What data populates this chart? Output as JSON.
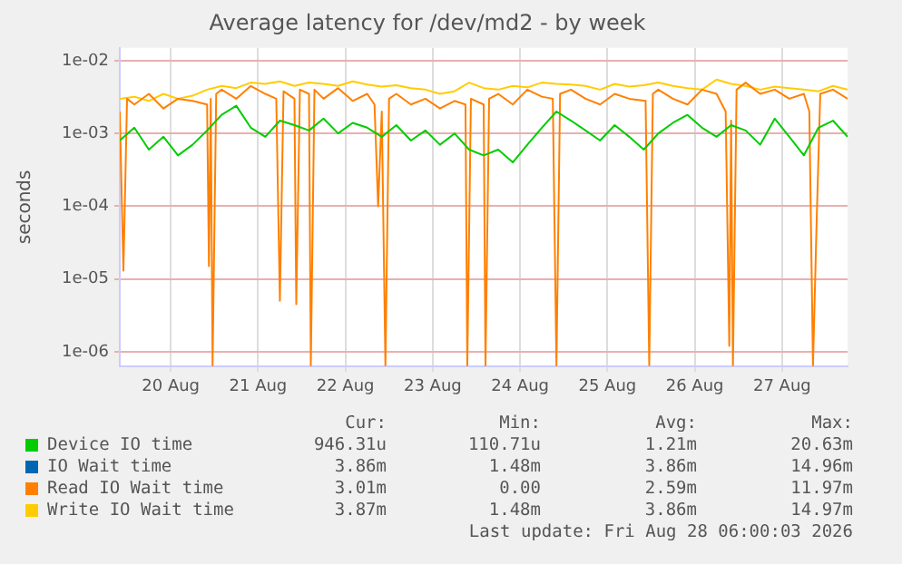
{
  "chart_data": {
    "type": "line",
    "title": "Average latency for /dev/md2 - by week",
    "ylabel": "seconds",
    "x": [
      "2026-08-19T22:00",
      "2026-08-20T02:00",
      "2026-08-20T06:00",
      "2026-08-20T10:00",
      "2026-08-20T14:00",
      "2026-08-20T18:00",
      "2026-08-20T22:00",
      "2026-08-21T02:00",
      "2026-08-21T06:00",
      "2026-08-21T10:00",
      "2026-08-21T14:00",
      "2026-08-21T18:00",
      "2026-08-21T22:00",
      "2026-08-22T02:00",
      "2026-08-22T06:00",
      "2026-08-22T10:00",
      "2026-08-22T14:00",
      "2026-08-22T18:00",
      "2026-08-22T22:00",
      "2026-08-23T02:00",
      "2026-08-23T06:00",
      "2026-08-23T10:00",
      "2026-08-23T14:00",
      "2026-08-23T18:00",
      "2026-08-23T22:00",
      "2026-08-24T02:00",
      "2026-08-24T06:00",
      "2026-08-24T10:00",
      "2026-08-24T14:00",
      "2026-08-24T18:00",
      "2026-08-24T22:00",
      "2026-08-25T02:00",
      "2026-08-25T06:00",
      "2026-08-25T10:00",
      "2026-08-25T14:00",
      "2026-08-25T18:00",
      "2026-08-25T22:00",
      "2026-08-26T02:00",
      "2026-08-26T06:00",
      "2026-08-26T10:00",
      "2026-08-26T14:00",
      "2026-08-26T18:00",
      "2026-08-26T22:00",
      "2026-08-27T02:00",
      "2026-08-27T06:00",
      "2026-08-27T10:00",
      "2026-08-27T14:00",
      "2026-08-27T18:00",
      "2026-08-27T22:00",
      "2026-08-28T02:00",
      "2026-08-28T06:00"
    ],
    "series": [
      {
        "name": "Device IO time",
        "color": "#00cc00",
        "values": [
          0.0008,
          0.0012,
          0.0006,
          0.0009,
          0.0005,
          0.0007,
          0.0011,
          0.0018,
          0.0024,
          0.0012,
          0.0009,
          0.0015,
          0.0013,
          0.0011,
          0.0016,
          0.001,
          0.0014,
          0.0012,
          0.0009,
          0.0013,
          0.0008,
          0.0011,
          0.0007,
          0.001,
          0.0006,
          0.0005,
          0.0006,
          0.0004,
          0.0007,
          0.0012,
          0.002,
          0.0015,
          0.0011,
          0.0008,
          0.0013,
          0.0009,
          0.0006,
          0.001,
          0.0014,
          0.0018,
          0.0012,
          0.0009,
          0.0013,
          0.0011,
          0.0007,
          0.0016,
          0.0009,
          0.0005,
          0.0012,
          0.0015,
          0.0009
        ]
      },
      {
        "name": "IO Wait time",
        "color": "#0066b3",
        "values": [
          null,
          null,
          null,
          null,
          null,
          null,
          null,
          null,
          null,
          null,
          null,
          null,
          null,
          null,
          null,
          null,
          null,
          null,
          null,
          null,
          null,
          null,
          null,
          null,
          null,
          null,
          null,
          null,
          null,
          null,
          null,
          null,
          null,
          null,
          null,
          null,
          null,
          null,
          null,
          null,
          null,
          null,
          null,
          null,
          null,
          null,
          null,
          null,
          null,
          null,
          null
        ]
      },
      {
        "name": "Read IO Wait time",
        "color": "#ff8000",
        "x": [
          "2026-08-19T22:00",
          "2026-08-19T23:00",
          "2026-08-20T00:00",
          "2026-08-20T02:00",
          "2026-08-20T06:00",
          "2026-08-20T10:00",
          "2026-08-20T14:00",
          "2026-08-20T18:00",
          "2026-08-20T22:00",
          "2026-08-20T22:30",
          "2026-08-20T23:00",
          "2026-08-20T23:30",
          "2026-08-21T00:30",
          "2026-08-21T02:00",
          "2026-08-21T06:00",
          "2026-08-21T10:00",
          "2026-08-21T14:00",
          "2026-08-21T17:00",
          "2026-08-21T18:00",
          "2026-08-21T19:00",
          "2026-08-21T22:00",
          "2026-08-21T22:30",
          "2026-08-21T23:30",
          "2026-08-22T02:00",
          "2026-08-22T02:30",
          "2026-08-22T03:30",
          "2026-08-22T06:00",
          "2026-08-22T10:00",
          "2026-08-22T14:00",
          "2026-08-22T18:00",
          "2026-08-22T20:00",
          "2026-08-22T21:00",
          "2026-08-22T22:00",
          "2026-08-22T23:00",
          "2026-08-23T00:00",
          "2026-08-23T02:00",
          "2026-08-23T06:00",
          "2026-08-23T10:00",
          "2026-08-23T14:00",
          "2026-08-23T18:00",
          "2026-08-23T21:00",
          "2026-08-23T21:30",
          "2026-08-23T22:30",
          "2026-08-24T02:00",
          "2026-08-24T02:30",
          "2026-08-24T03:30",
          "2026-08-24T06:00",
          "2026-08-24T10:00",
          "2026-08-24T14:00",
          "2026-08-24T18:00",
          "2026-08-24T21:00",
          "2026-08-24T22:00",
          "2026-08-24T23:00",
          "2026-08-25T02:00",
          "2026-08-25T06:00",
          "2026-08-25T10:00",
          "2026-08-25T14:00",
          "2026-08-25T18:00",
          "2026-08-25T22:30",
          "2026-08-25T23:30",
          "2026-08-26T00:30",
          "2026-08-26T02:00",
          "2026-08-26T06:00",
          "2026-08-26T10:00",
          "2026-08-26T14:00",
          "2026-08-26T18:00",
          "2026-08-26T20:30",
          "2026-08-26T21:30",
          "2026-08-26T22:00",
          "2026-08-26T22:30",
          "2026-08-26T23:30",
          "2026-08-27T02:00",
          "2026-08-27T06:00",
          "2026-08-27T10:00",
          "2026-08-27T14:00",
          "2026-08-27T18:00",
          "2026-08-27T19:30",
          "2026-08-27T20:30",
          "2026-08-27T21:30",
          "2026-08-27T22:30",
          "2026-08-28T02:00",
          "2026-08-28T06:00"
        ],
        "values": [
          0.002,
          1.3e-05,
          0.003,
          0.0025,
          0.0035,
          0.0022,
          0.003,
          0.0028,
          0.0025,
          1.5e-05,
          0.003,
          6.5e-07,
          0.0035,
          0.004,
          0.003,
          0.0045,
          0.0035,
          0.003,
          5e-06,
          0.0038,
          0.003,
          4.5e-06,
          0.004,
          0.0035,
          6.5e-07,
          0.004,
          0.003,
          0.0042,
          0.0028,
          0.0035,
          0.0025,
          0.0001,
          0.002,
          6.5e-07,
          0.003,
          0.0035,
          0.0025,
          0.003,
          0.0022,
          0.0028,
          0.0025,
          6.5e-07,
          0.003,
          0.0025,
          6.5e-07,
          0.003,
          0.0035,
          0.0025,
          0.004,
          0.0032,
          0.003,
          6.5e-07,
          0.0035,
          0.004,
          0.003,
          0.0025,
          0.0035,
          0.003,
          0.0028,
          6.5e-07,
          0.0035,
          0.004,
          0.003,
          0.0025,
          0.004,
          0.0035,
          0.002,
          1.2e-06,
          0.0015,
          6.5e-07,
          0.004,
          0.005,
          0.0035,
          0.004,
          0.003,
          0.0035,
          0.002,
          6.5e-07,
          6e-05,
          0.0035,
          0.004,
          0.003
        ]
      },
      {
        "name": "Write IO Wait time",
        "color": "#ffcc00",
        "values": [
          0.003,
          0.0032,
          0.0028,
          0.0035,
          0.003,
          0.0033,
          0.004,
          0.0045,
          0.0042,
          0.005,
          0.0048,
          0.0052,
          0.0045,
          0.005,
          0.0048,
          0.0045,
          0.0052,
          0.0047,
          0.0044,
          0.0046,
          0.0042,
          0.004,
          0.0035,
          0.0038,
          0.005,
          0.0042,
          0.004,
          0.0045,
          0.0043,
          0.005,
          0.0048,
          0.0047,
          0.0045,
          0.004,
          0.0048,
          0.0044,
          0.0046,
          0.005,
          0.0045,
          0.0042,
          0.004,
          0.0055,
          0.0048,
          0.0045,
          0.004,
          0.0044,
          0.0042,
          0.004,
          0.0038,
          0.0045,
          0.004
        ]
      }
    ],
    "xlim": [
      "2026-08-19T22:00",
      "2026-08-28T06:00"
    ],
    "xticks": [
      {
        "value": "2026-08-20T12:00",
        "label": "20 Aug"
      },
      {
        "value": "2026-08-21T12:00",
        "label": "21 Aug"
      },
      {
        "value": "2026-08-22T12:00",
        "label": "22 Aug"
      },
      {
        "value": "2026-08-23T12:00",
        "label": "23 Aug"
      },
      {
        "value": "2026-08-24T12:00",
        "label": "24 Aug"
      },
      {
        "value": "2026-08-25T12:00",
        "label": "25 Aug"
      },
      {
        "value": "2026-08-26T12:00",
        "label": "26 Aug"
      },
      {
        "value": "2026-08-27T12:00",
        "label": "27 Aug"
      }
    ],
    "ylim": [
      6.3e-07,
      0.015
    ],
    "yticks": [
      {
        "value": 1e-06,
        "label": "1e-06"
      },
      {
        "value": 1e-05,
        "label": "1e-05"
      },
      {
        "value": 0.0001,
        "label": "1e-04"
      },
      {
        "value": 0.001,
        "label": "1e-03"
      },
      {
        "value": 0.01,
        "label": "1e-02"
      }
    ],
    "log": "y",
    "grid": true,
    "legend": "bottom",
    "marker": "none",
    "line_style": "solid",
    "annotations": [
      "Cur:",
      "Min:",
      "Avg:",
      "Max:",
      "946.31u",
      "110.71u",
      "1.21m",
      "20.63m",
      "3.86m",
      "1.48m",
      "3.86m",
      "14.96m",
      "3.01m",
      "0.00",
      "2.59m",
      "11.97m",
      "3.87m",
      "1.48m",
      "3.86m",
      "14.97m",
      "Last update: Fri Aug 28 06:00:03 2026"
    ]
  }
}
